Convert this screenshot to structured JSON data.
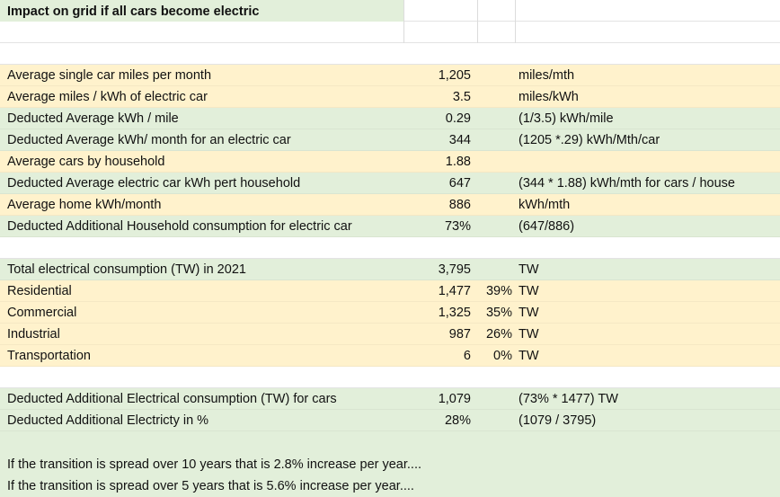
{
  "title": "Impact on grid if all cars become electric",
  "block1": [
    {
      "label": "Average single car miles per month",
      "value": "1,205",
      "note": "miles/mth"
    },
    {
      "label": "Average miles / kWh of electric car",
      "value": "3.5",
      "note": "miles/kWh"
    },
    {
      "label": "Deducted Average kWh / mile",
      "value": "0.29",
      "note": "(1/3.5) kWh/mile"
    },
    {
      "label": "Deducted Average kWh/ month for an electric car",
      "value": "344",
      "note": "(1205 *.29) kWh/Mth/car"
    },
    {
      "label": "Average cars by household",
      "value": "1.88",
      "note": ""
    },
    {
      "label": "Deducted Average  electric car kWh pert household",
      "value": "647",
      "note": "(344 * 1.88) kWh/mth for cars / house"
    },
    {
      "label": "Average home kWh/month",
      "value": "886",
      "note": "kWh/mth"
    },
    {
      "label": "Deducted Additional Household consumption for electric car",
      "value": "73%",
      "note": "(647/886)"
    }
  ],
  "block2": [
    {
      "label": "Total electrical consumption (TW) in 2021",
      "value": "3,795",
      "pct": "",
      "note": "TW"
    },
    {
      "label": "Residential",
      "value": "1,477",
      "pct": "39%",
      "note": "TW"
    },
    {
      "label": "Commercial",
      "value": "1,325",
      "pct": "35%",
      "note": "TW"
    },
    {
      "label": "Industrial",
      "value": "987",
      "pct": "26%",
      "note": "TW"
    },
    {
      "label": "Transportation",
      "value": "6",
      "pct": "0%",
      "note": "TW"
    }
  ],
  "block3": [
    {
      "label": "Deducted Additional Electrical consumption (TW) for cars",
      "value": "1,079",
      "note": "(73% * 1477) TW"
    },
    {
      "label": "Deducted Additional Electricty in %",
      "value": "28%",
      "note": "(1079 / 3795)"
    }
  ],
  "conclusions": [
    "If the transition is spread over 10 years that is 2.8% increase per year....",
    "If the transition is spread over 5 years that is 5.6% increase per year...."
  ]
}
